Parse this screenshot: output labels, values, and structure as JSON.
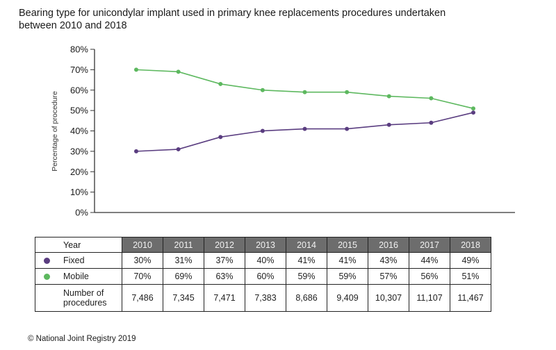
{
  "chart_data": {
    "type": "line",
    "title": "Bearing type for unicondylar implant used in primary knee replacements procedures undertaken between 2010 and 2018",
    "title_lines": [
      "Bearing type for unicondylar implant used in primary knee replacements procedures undertaken",
      "between 2010 and 2018"
    ],
    "xlabel": "",
    "ylabel": "Percentage of procedure",
    "x": [
      "2010",
      "2011",
      "2012",
      "2013",
      "2014",
      "2015",
      "2016",
      "2017",
      "2018"
    ],
    "ylim": [
      0,
      80
    ],
    "yticks": [
      0,
      10,
      20,
      30,
      40,
      50,
      60,
      70,
      80
    ],
    "ytick_labels": [
      "0%",
      "10%",
      "20%",
      "30%",
      "40%",
      "50%",
      "60%",
      "70%",
      "80%"
    ],
    "grid": false,
    "legend": "table-below",
    "series": [
      {
        "name": "Fixed",
        "color": "#5a3d80",
        "values": [
          30,
          31,
          37,
          40,
          41,
          41,
          43,
          44,
          49
        ]
      },
      {
        "name": "Mobile",
        "color": "#5db85f",
        "values": [
          70,
          69,
          63,
          60,
          59,
          59,
          57,
          56,
          51
        ]
      }
    ]
  },
  "table": {
    "header_label": "Year",
    "years": [
      "2010",
      "2011",
      "2012",
      "2013",
      "2014",
      "2015",
      "2016",
      "2017",
      "2018"
    ],
    "rows": [
      {
        "label": "Fixed",
        "color": "#5a3d80",
        "cells": [
          "30%",
          "31%",
          "37%",
          "40%",
          "41%",
          "41%",
          "43%",
          "44%",
          "49%"
        ]
      },
      {
        "label": "Mobile",
        "color": "#5db85f",
        "cells": [
          "70%",
          "69%",
          "63%",
          "60%",
          "59%",
          "59%",
          "57%",
          "56%",
          "51%"
        ]
      }
    ],
    "procedures": {
      "label_line1": "Number of",
      "label_line2": "procedures",
      "cells": [
        "7,486",
        "7,345",
        "7,471",
        "7,383",
        "8,686",
        "9,409",
        "10,307",
        "11,107",
        "11,467"
      ]
    }
  },
  "credit": "© National Joint Registry 2019"
}
